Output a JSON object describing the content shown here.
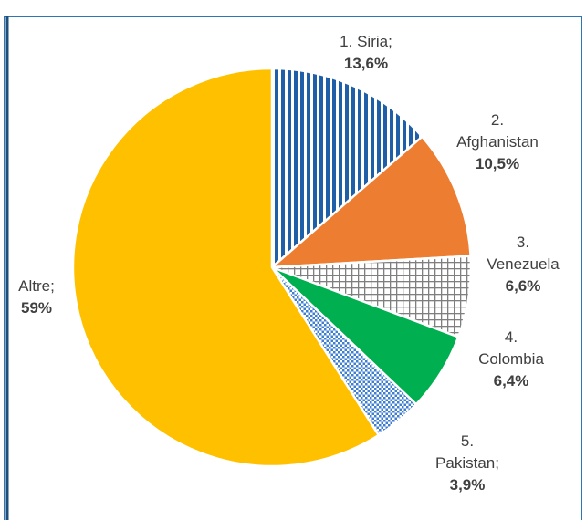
{
  "chart_data": {
    "type": "pie",
    "categories": [
      "1. Siria;",
      "2. Afghanistan",
      "3. Venezuela",
      "4. Colombia",
      "5. Pakistan;",
      "Altre;"
    ],
    "values": [
      13.6,
      10.5,
      6.6,
      6.4,
      3.9,
      59
    ],
    "value_labels": [
      "13,6%",
      "10,5%",
      "6,6%",
      "6,4%",
      "3,9%",
      "59%"
    ],
    "colors": [
      "#1f5fa8",
      "#ed7d31",
      "#7f7f7f",
      "#00b050",
      "#3f7fd0",
      "#ffc000"
    ],
    "patterns": [
      "vertical-stripes",
      "solid",
      "crosshatch",
      "solid",
      "checker",
      "solid"
    ]
  }
}
